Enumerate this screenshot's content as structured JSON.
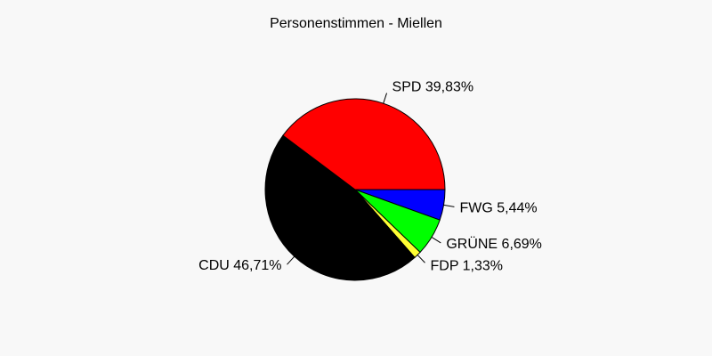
{
  "chart_data": {
    "type": "pie",
    "title": "Personenstimmen - Miellen",
    "slices": [
      {
        "name": "FWG",
        "value": 5.44,
        "label": "FWG 5,44%",
        "color": "#0000ff"
      },
      {
        "name": "GRÜNE",
        "value": 6.69,
        "label": "GRÜNE 6,69%",
        "color": "#00ff00"
      },
      {
        "name": "FDP",
        "value": 1.33,
        "label": "FDP 1,33%",
        "color": "#ffff33"
      },
      {
        "name": "CDU",
        "value": 46.71,
        "label": "CDU 46,71%",
        "color": "#000000"
      },
      {
        "name": "SPD",
        "value": 39.83,
        "label": "SPD 39,83%",
        "color": "#ff0000"
      }
    ]
  }
}
